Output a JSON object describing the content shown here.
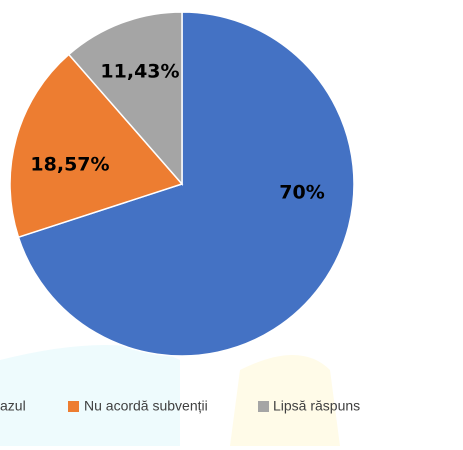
{
  "chart_data": {
    "type": "pie",
    "categories": [
      "azul",
      "Nu acordă subvenții",
      "Lipsă răspuns"
    ],
    "values": [
      70,
      18.57,
      11.43
    ],
    "value_labels": [
      "70%",
      "18,57%",
      "11,43%"
    ],
    "colors": [
      "#4472c4",
      "#ed7d31",
      "#a5a5a5"
    ],
    "legend": "bottom"
  }
}
